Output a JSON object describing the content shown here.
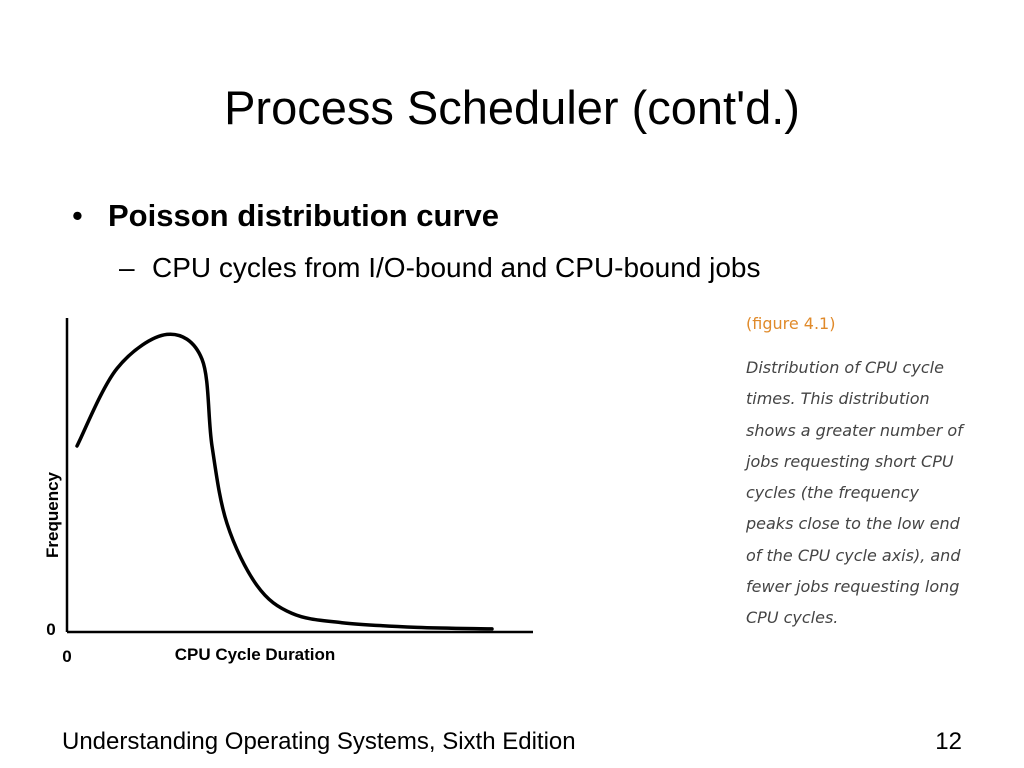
{
  "slide": {
    "title": "Process Scheduler (cont'd.)",
    "bullet_symbol": "•",
    "bullet": "Poisson distribution curve",
    "sub_bullet_symbol": "–",
    "sub_bullet": "CPU cycles from I/O-bound and CPU-bound jobs"
  },
  "figure": {
    "label": "(figure  4.1)",
    "caption_lines": [
      "Distribution of CPU cycle",
      "times. This distribution",
      "shows a greater number of",
      "jobs requesting short CPU",
      "cycles (the frequency",
      "peaks close to the low end",
      "of the CPU cycle axis), and",
      "fewer jobs requesting long",
      "CPU cycles."
    ]
  },
  "chart_data": {
    "type": "line",
    "xlabel": "CPU Cycle Duration",
    "ylabel": "Frequency",
    "x_origin_label": "0",
    "y_origin_label": "0",
    "grid": false,
    "series": [
      {
        "x": [
          0.02,
          0.1,
          0.2,
          0.27,
          0.29,
          0.32,
          0.38,
          0.45,
          0.55,
          0.7,
          0.85
        ],
        "y": [
          0.6,
          0.85,
          0.96,
          0.88,
          0.6,
          0.35,
          0.15,
          0.06,
          0.03,
          0.015,
          0.01
        ]
      }
    ]
  },
  "footer": {
    "book": "Understanding Operating Systems, Sixth Edition",
    "page": "12"
  }
}
